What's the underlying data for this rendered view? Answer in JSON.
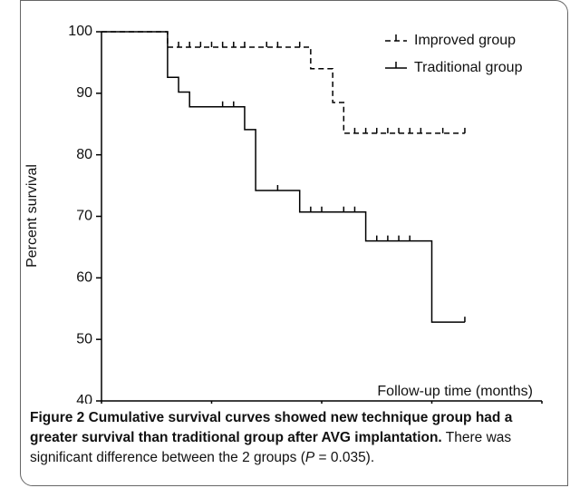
{
  "chart_data": {
    "type": "step",
    "xlabel": "Follow-up time (months)",
    "ylabel": "Percent survival",
    "xlim": [
      0,
      40
    ],
    "xticks": [
      0,
      10,
      20,
      30,
      40
    ],
    "ylim": [
      40,
      100
    ],
    "yticks": [
      40,
      50,
      60,
      70,
      80,
      90,
      100
    ],
    "legend": "upper right",
    "grid": false,
    "series": [
      {
        "name": "Improved group",
        "color": "#000000",
        "dash": true,
        "x": [
          0,
          6,
          19,
          21,
          22,
          33
        ],
        "values": [
          100,
          97.5,
          94,
          88.5,
          83.5,
          83.5
        ],
        "censored_x": [
          7,
          8,
          9,
          10,
          11,
          12,
          13,
          15,
          16,
          18,
          23,
          24,
          25,
          26,
          27,
          28,
          29,
          31,
          33
        ],
        "censored_values": [
          97.5,
          97.5,
          97.5,
          97.5,
          97.5,
          97.5,
          97.5,
          97.5,
          97.5,
          97.5,
          83.5,
          83.5,
          83.5,
          83.5,
          83.5,
          83.5,
          83.5,
          83.5,
          83.5
        ]
      },
      {
        "name": "Traditional group",
        "color": "#000000",
        "dash": false,
        "x": [
          0,
          6,
          7,
          8,
          13,
          14,
          18,
          24,
          30,
          33
        ],
        "values": [
          100,
          92.6,
          90.2,
          87.8,
          84.1,
          74.2,
          70.7,
          66,
          52.8,
          52.8
        ],
        "censored_x": [
          11,
          12,
          16,
          19,
          20,
          22,
          23,
          25,
          26,
          27,
          28,
          33
        ],
        "censored_values": [
          87.8,
          87.8,
          74.2,
          70.7,
          70.7,
          70.7,
          70.7,
          66,
          66,
          66,
          66,
          52.8
        ]
      }
    ]
  },
  "caption": {
    "label": "Figure 2",
    "title": "Cumulative survival curves showed new technique group had a greater survival than traditional group after AVG implantation.",
    "text": [
      "There was significant difference between the 2 groups (",
      "P",
      " = 0.035)."
    ]
  }
}
